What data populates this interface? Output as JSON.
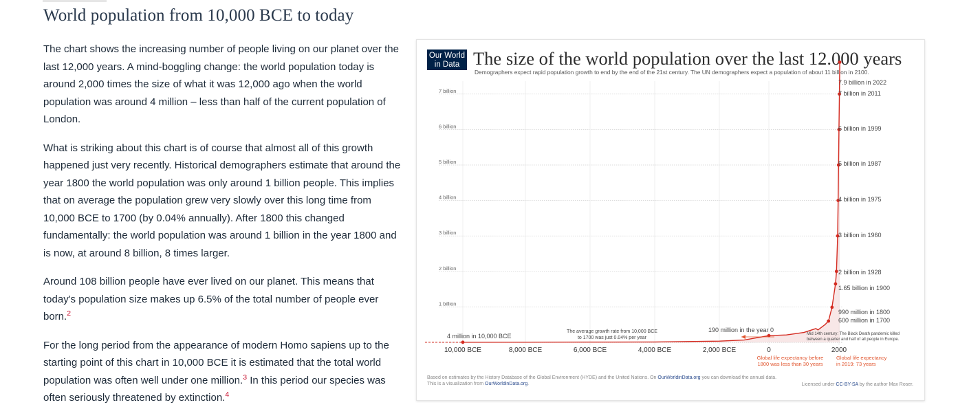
{
  "page": {
    "title": "World population from 10,000 BCE to today"
  },
  "article": {
    "p1": "The chart shows the increasing number of people living on our planet over the last 12,000 years. A mind-boggling change: the world population today is around 2,000 times the size of what it was 12,000 ago when the world population was around 4 million – less than half of the current population of London.",
    "p2": "What is striking about this chart is of course that almost all of this growth happened just very recently. Historical demographers estimate that around the year 1800 the world population was only around 1 billion people. This implies that on average the population grew very slowly over this long time from 10,000 BCE to 1700 (by 0.04% annually). After 1800 this changed fundamentally: the world population was around 1 billion in the year 1800 and is now, at around 8 billion, 8 times larger.",
    "p3": "Around 108 billion people have ever lived on our planet. This means that today's population size makes up 6.5% of the total number of people ever born.",
    "p3_note": "2",
    "p4a": "For the long period from the appearance of modern Homo sapiens up to the starting point of this chart in 10,000 BCE it is estimated that the total world population was often well under one million.",
    "p4_note1": "3",
    "p4b": " In this period our species was often seriously threatened by extinction.",
    "p4_note2": "4"
  },
  "chart": {
    "logo_line1": "Our World",
    "logo_line2": "in Data",
    "logo_color": "#002147",
    "accent_color": "#d42b21",
    "title": "The size of the world population over the last 12.000 years",
    "subtitle": "Demographers expect rapid population growth to end by the end of the 21st century. The UN demographers expect a population of about 11 billion in 2100.",
    "footer_line1_a": "Based on estimates by the History Database of the Global Environment (HYDE) and the United Nations. On ",
    "footer_link": "OurWorldinData.org",
    "footer_line1_b": " you can download the annual data.",
    "footer_line2_a": "This is a visualization from ",
    "footer_line2_link": "OurWorldinData.org",
    "footer_line2_b": ".",
    "license_a": "Licensed under ",
    "license_link": "CC-BY-SA",
    "license_b": " by the author Max Roser.",
    "annotations": {
      "start": "4 million in 10,000 BCE",
      "growth_rate_1": "The average growth rate from 10,000 BCE",
      "growth_rate_2": "to 1700 was just 0.04% per year",
      "year_zero": "190 million in the year 0",
      "black_death_1": "Mid 14th century: The Black Death pandemic killed",
      "black_death_2": "between a quarter and half of all people in Europe.",
      "life_exp_before_1": "Global life expectancy before",
      "life_exp_before_2": "1800 was less than 30 years",
      "life_exp_2019_1": "Global life expectancy",
      "life_exp_2019_2": "in 2019: 73 years"
    }
  },
  "chart_data": {
    "type": "line",
    "title": "The size of the world population over the last 12.000 years",
    "xlabel": "",
    "ylabel": "",
    "x_ticks": [
      "10,000 BCE",
      "8,000 BCE",
      "6,000 BCE",
      "4,000 BCE",
      "2,000 BCE",
      "0",
      "2000"
    ],
    "y_ticks": [
      "1 billion",
      "2 billion",
      "3 billion",
      "4 billion",
      "5 billion",
      "6 billion",
      "7 billion"
    ],
    "xlim": [
      -10000,
      2022
    ],
    "ylim": [
      0,
      7.9
    ],
    "grid": true,
    "series": [
      {
        "points": [
          {
            "x": -10000,
            "y": 0.004
          },
          {
            "x": -8000,
            "y": 0.005
          },
          {
            "x": -6000,
            "y": 0.007
          },
          {
            "x": -4000,
            "y": 0.012
          },
          {
            "x": -2000,
            "y": 0.035
          },
          {
            "x": -1000,
            "y": 0.065
          },
          {
            "x": 0,
            "y": 0.19
          },
          {
            "x": 500,
            "y": 0.21
          },
          {
            "x": 1000,
            "y": 0.28
          },
          {
            "x": 1340,
            "y": 0.39
          },
          {
            "x": 1400,
            "y": 0.35
          },
          {
            "x": 1600,
            "y": 0.5
          },
          {
            "x": 1700,
            "y": 0.6
          },
          {
            "x": 1800,
            "y": 0.99
          },
          {
            "x": 1900,
            "y": 1.65
          },
          {
            "x": 1928,
            "y": 2
          },
          {
            "x": 1960,
            "y": 3
          },
          {
            "x": 1975,
            "y": 4
          },
          {
            "x": 1987,
            "y": 5
          },
          {
            "x": 1999,
            "y": 6
          },
          {
            "x": 2011,
            "y": 7
          },
          {
            "x": 2022,
            "y": 7.9
          }
        ]
      }
    ],
    "labeled_points": [
      {
        "x": -10000,
        "y": 0.004,
        "label": "4 million in 10,000 BCE"
      },
      {
        "x": 0,
        "y": 0.19,
        "label": "190 million in the year 0"
      },
      {
        "x": 1700,
        "y": 0.6,
        "label": "600 million in 1700"
      },
      {
        "x": 1800,
        "y": 0.99,
        "label": "990 million in 1800"
      },
      {
        "x": 1900,
        "y": 1.65,
        "label": "1.65 billion in 1900"
      },
      {
        "x": 1928,
        "y": 2,
        "label": "2 billion in 1928"
      },
      {
        "x": 1960,
        "y": 3,
        "label": "3 billion in 1960"
      },
      {
        "x": 1975,
        "y": 4,
        "label": "4 billion in 1975"
      },
      {
        "x": 1987,
        "y": 5,
        "label": "5 billion in 1987"
      },
      {
        "x": 1999,
        "y": 6,
        "label": "6 billion in 1999"
      },
      {
        "x": 2011,
        "y": 7,
        "label": "7 billion in 2011"
      },
      {
        "x": 2022,
        "y": 7.9,
        "label": "7.9 billion in 2022"
      }
    ]
  }
}
